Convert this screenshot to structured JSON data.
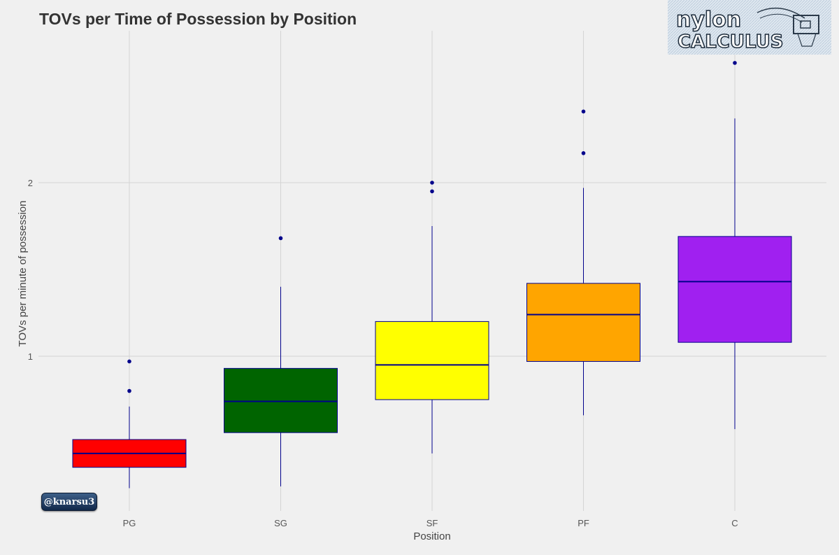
{
  "chart_data": {
    "type": "boxplot",
    "title": "TOVs per Time of Possession by Position",
    "xlabel": "Position",
    "ylabel": "TOVs per minute of possession",
    "ylim": [
      0.2,
      2.85
    ],
    "yticks": [
      1,
      2
    ],
    "ytick_labels": [
      "1",
      "2"
    ],
    "grid": true,
    "categories": [
      "PG",
      "SG",
      "SF",
      "PF",
      "C"
    ],
    "boxes": [
      {
        "category": "PG",
        "whisker_low": 0.24,
        "q1": 0.36,
        "median": 0.44,
        "q3": 0.52,
        "whisker_high": 0.71,
        "outliers": [
          0.8,
          0.97
        ],
        "color": "#ff0000"
      },
      {
        "category": "SG",
        "whisker_low": 0.25,
        "q1": 0.56,
        "median": 0.74,
        "q3": 0.93,
        "whisker_high": 1.4,
        "outliers": [
          1.68
        ],
        "color": "#006400"
      },
      {
        "category": "SF",
        "whisker_low": 0.44,
        "q1": 0.75,
        "median": 0.95,
        "q3": 1.2,
        "whisker_high": 1.75,
        "outliers": [
          1.95,
          2.0
        ],
        "color": "#ffff00"
      },
      {
        "category": "PF",
        "whisker_low": 0.66,
        "q1": 0.97,
        "median": 1.24,
        "q3": 1.42,
        "whisker_high": 1.97,
        "outliers": [
          2.17,
          2.41
        ],
        "color": "#ffa500"
      },
      {
        "category": "C",
        "whisker_low": 0.58,
        "q1": 1.08,
        "median": 1.43,
        "q3": 1.69,
        "whisker_high": 2.37,
        "outliers": [
          2.69,
          2.76
        ],
        "color": "#a020f0"
      }
    ],
    "line_color": "#00008b"
  },
  "logo": {
    "line1": "nylon",
    "line2": "CALCULUS"
  },
  "handle": "@knarsu3"
}
